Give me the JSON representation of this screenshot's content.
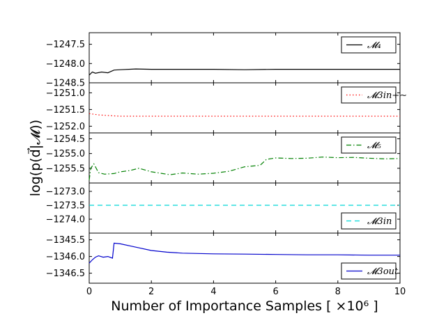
{
  "chart_data": {
    "type": "line",
    "xlabel": "Number of Importance Samples [ ×10⁶ ]",
    "ylabel": "log(p(d⃗|𝓜))",
    "xlim": [
      0,
      10
    ],
    "xticks": [
      0,
      2,
      4,
      6,
      8,
      10
    ],
    "x_tick_labels": [
      "0",
      "2",
      "4",
      "6",
      "8",
      "10"
    ],
    "panels": [
      {
        "legend": "𝓜₄",
        "legend_loc": "top-right",
        "color": "#000000",
        "linestyle": "solid",
        "ylim": [
          -1248.5,
          -1247.2
        ],
        "yticks": [
          -1247.5,
          -1248.0,
          -1248.5
        ],
        "y_tick_labels": [
          "−1247.5",
          "−1248.0",
          "−1248.5"
        ],
        "x": [
          0.0,
          0.1,
          0.2,
          0.4,
          0.6,
          0.8,
          1.0,
          1.5,
          2.0,
          3.0,
          4.0,
          5.0,
          6.0,
          7.0,
          8.0,
          9.0,
          10.0
        ],
        "values": [
          -1248.3,
          -1248.22,
          -1248.25,
          -1248.22,
          -1248.24,
          -1248.17,
          -1248.16,
          -1248.14,
          -1248.15,
          -1248.15,
          -1248.15,
          -1248.16,
          -1248.15,
          -1248.15,
          -1248.15,
          -1248.15,
          -1248.15
        ]
      },
      {
        "legend": "𝓜3in+∼",
        "legend_loc": "top-right",
        "color": "#ff0000",
        "linestyle": "dotted",
        "ylim": [
          -1252.2,
          -1250.7
        ],
        "yticks": [
          -1251.0,
          -1251.5,
          -1252.0
        ],
        "y_tick_labels": [
          "−1251.0",
          "−1251.5",
          "−1252.0"
        ],
        "x": [
          0.0,
          0.3,
          0.6,
          1.0,
          2.0,
          3.0,
          4.0,
          5.0,
          6.0,
          7.0,
          8.0,
          9.0,
          10.0
        ],
        "values": [
          -1251.62,
          -1251.66,
          -1251.68,
          -1251.7,
          -1251.7,
          -1251.7,
          -1251.7,
          -1251.7,
          -1251.7,
          -1251.7,
          -1251.7,
          -1251.7,
          -1251.7
        ]
      },
      {
        "legend": "𝓜₅",
        "legend_loc": "top-right",
        "color": "#008000",
        "linestyle": "dashdot",
        "ylim": [
          -1256.0,
          -1254.3
        ],
        "yticks": [
          -1254.5,
          -1255.0,
          -1255.5
        ],
        "y_tick_labels": [
          "−1254.5",
          "−1255.0",
          "−1255.5"
        ],
        "x": [
          0.0,
          0.05,
          0.15,
          0.3,
          0.5,
          0.8,
          1.0,
          1.3,
          1.6,
          2.0,
          2.3,
          2.6,
          3.0,
          3.5,
          4.0,
          4.5,
          5.0,
          5.5,
          5.7,
          6.0,
          6.5,
          7.0,
          7.5,
          8.0,
          8.5,
          9.0,
          9.5,
          10.0
        ],
        "values": [
          -1255.9,
          -1255.5,
          -1255.35,
          -1255.65,
          -1255.7,
          -1255.68,
          -1255.62,
          -1255.58,
          -1255.5,
          -1255.62,
          -1255.67,
          -1255.72,
          -1255.66,
          -1255.7,
          -1255.67,
          -1255.6,
          -1255.45,
          -1255.4,
          -1255.2,
          -1255.15,
          -1255.17,
          -1255.16,
          -1255.12,
          -1255.14,
          -1255.13,
          -1255.16,
          -1255.18,
          -1255.17
        ]
      },
      {
        "legend": "𝓜3in",
        "legend_loc": "bottom-right",
        "color": "#00d8d8",
        "linestyle": "dashed",
        "ylim": [
          -1274.5,
          -1272.7
        ],
        "yticks": [
          -1273.0,
          -1273.5,
          -1274.0
        ],
        "y_tick_labels": [
          "−1273.0",
          "−1273.5",
          "−1274.0"
        ],
        "x": [
          0.0,
          10.0
        ],
        "values": [
          -1273.5,
          -1273.5
        ]
      },
      {
        "legend": "𝓜3out",
        "legend_loc": "bottom-right",
        "color": "#0000cc",
        "linestyle": "solid",
        "ylim": [
          -1346.8,
          -1345.3
        ],
        "yticks": [
          -1345.5,
          -1346.0,
          -1346.5
        ],
        "y_tick_labels": [
          "−1345.5",
          "−1346.0",
          "−1346.5"
        ],
        "x": [
          0.0,
          0.1,
          0.2,
          0.3,
          0.45,
          0.6,
          0.75,
          0.8,
          1.0,
          1.5,
          2.0,
          2.5,
          3.0,
          4.0,
          5.0,
          6.0,
          7.0,
          8.0,
          9.0,
          10.0
        ],
        "values": [
          -1346.2,
          -1346.1,
          -1346.02,
          -1345.98,
          -1346.02,
          -1346.0,
          -1346.05,
          -1345.6,
          -1345.62,
          -1345.72,
          -1345.82,
          -1345.87,
          -1345.9,
          -1345.92,
          -1345.93,
          -1345.94,
          -1345.95,
          -1345.95,
          -1345.96,
          -1345.96
        ]
      }
    ]
  }
}
